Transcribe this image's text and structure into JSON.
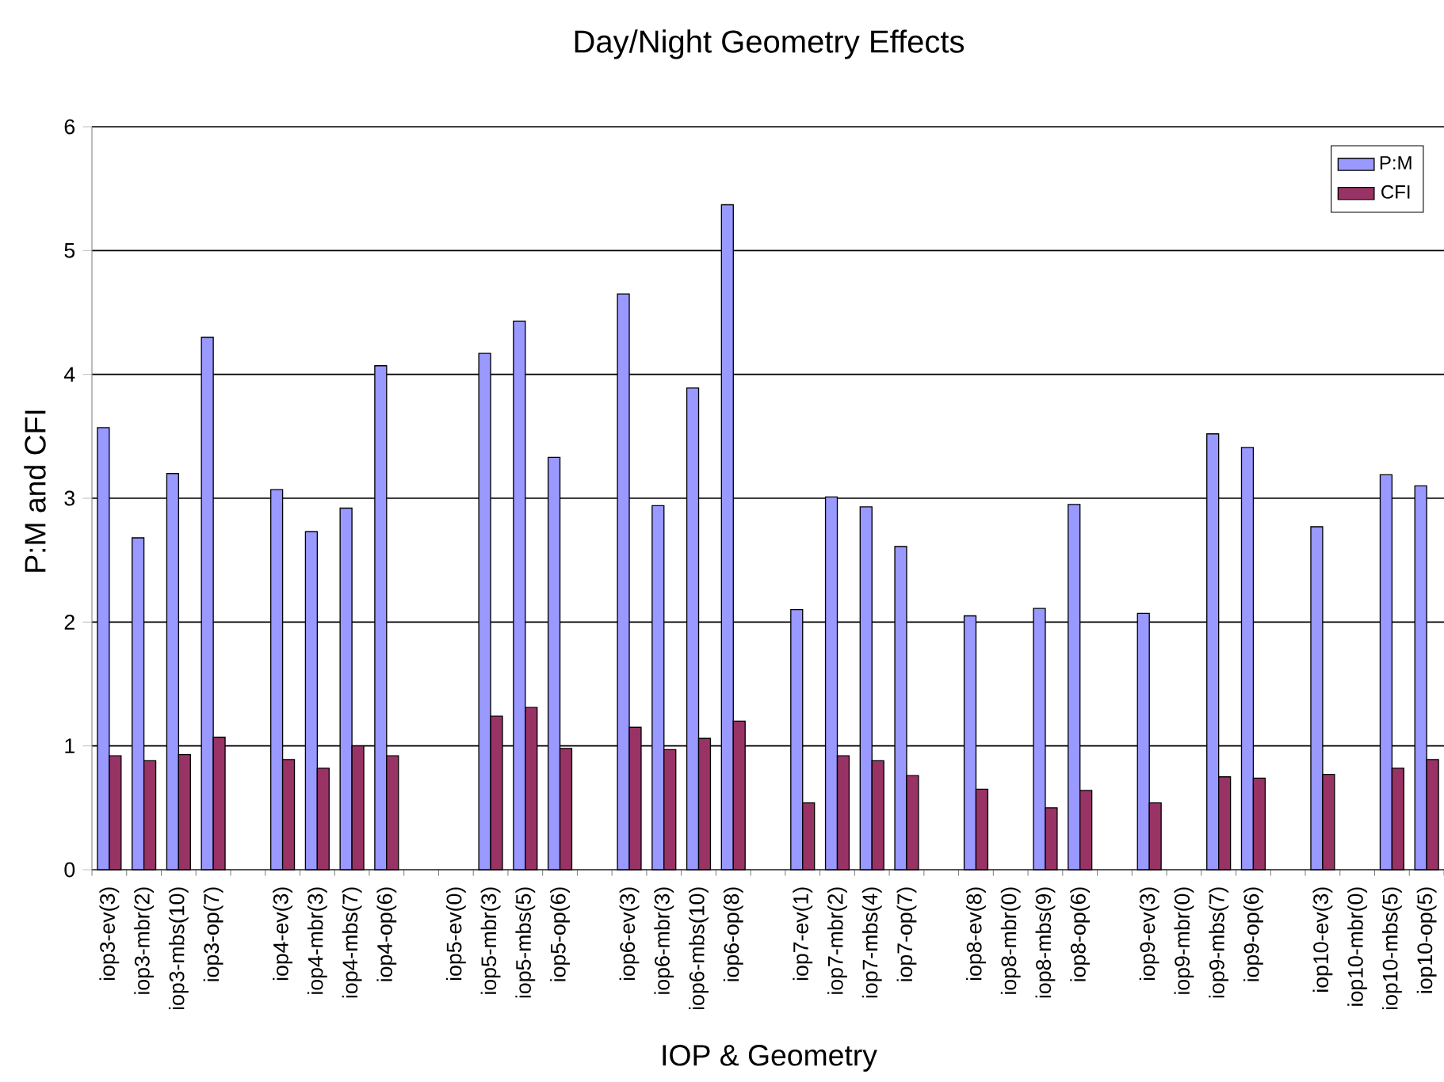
{
  "chart_data": {
    "type": "bar",
    "title": "Day/Night Geometry Effects",
    "xlabel": "IOP & Geometry",
    "ylabel": "P:M and CFI",
    "categories": [
      "iop3-ev(3)",
      "iop3-mbr(2)",
      "iop3-mbs(10)",
      "iop3-op(7)",
      null,
      "iop4-ev(3)",
      "iop4-mbr(3)",
      "iop4-mbs(7)",
      "iop4-op(6)",
      null,
      "iop5-ev(0)",
      "iop5-mbr(3)",
      "iop5-mbs(5)",
      "iop5-op(6)",
      null,
      "iop6-ev(3)",
      "iop6-mbr(3)",
      "iop6-mbs(10)",
      "iop6-op(8)",
      null,
      "iop7-ev(1)",
      "iop7-mbr(2)",
      "iop7-mbs(4)",
      "iop7-op(7)",
      null,
      "iop8-ev(8)",
      "iop8-mbr(0)",
      "iop8-mbs(9)",
      "iop8-op(6)",
      null,
      "iop9-ev(3)",
      "iop9-mbr(0)",
      "iop9-mbs(7)",
      "iop9-op(6)",
      null,
      "iop10-ev(3)",
      "iop10-mbr(0)",
      "iop10-mbs(5)",
      "iop10-op(5)"
    ],
    "series": [
      {
        "name": "P:M",
        "color": "#9999ff",
        "values": [
          3.57,
          2.68,
          3.2,
          4.3,
          null,
          3.07,
          2.73,
          2.92,
          4.07,
          null,
          null,
          4.17,
          4.43,
          3.33,
          null,
          4.65,
          2.94,
          3.89,
          5.37,
          null,
          2.1,
          3.01,
          2.93,
          2.61,
          null,
          2.05,
          null,
          2.11,
          2.95,
          null,
          2.07,
          null,
          3.52,
          3.41,
          null,
          2.77,
          null,
          3.19,
          3.1
        ]
      },
      {
        "name": "CFI",
        "color": "#993366",
        "values": [
          0.92,
          0.88,
          0.93,
          1.07,
          null,
          0.89,
          0.82,
          1.0,
          0.92,
          null,
          null,
          1.24,
          1.31,
          0.98,
          null,
          1.15,
          0.97,
          1.06,
          1.2,
          null,
          0.54,
          0.92,
          0.88,
          0.76,
          null,
          0.65,
          null,
          0.5,
          0.64,
          null,
          0.54,
          null,
          0.75,
          0.74,
          null,
          0.77,
          null,
          0.82,
          0.89
        ]
      }
    ],
    "ylim": [
      0,
      6
    ],
    "yticks": [
      0,
      1,
      2,
      3,
      4,
      5,
      6
    ],
    "grid": "y",
    "legend": "top right"
  }
}
